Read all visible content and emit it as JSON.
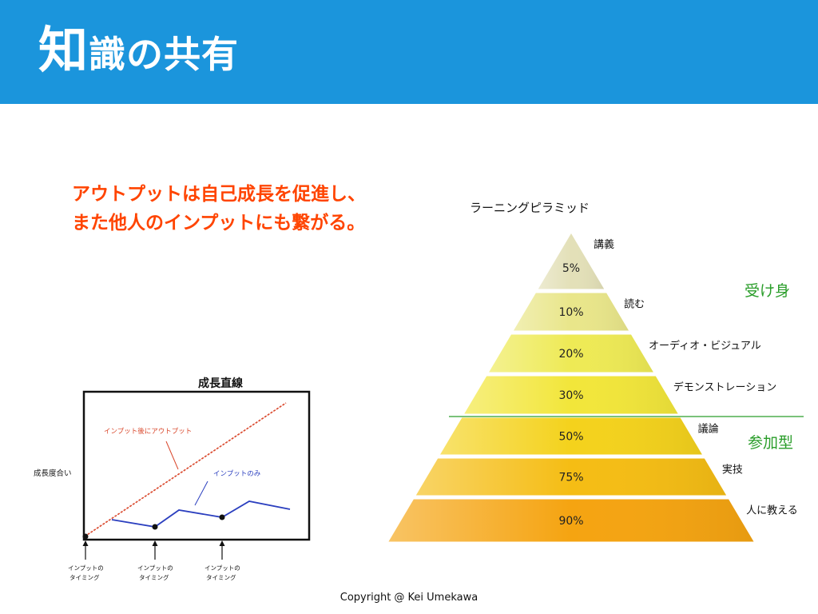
{
  "slide": {
    "title_first": "知",
    "title_rest": "識の共有",
    "highlight_line1": "アウトプットは自己成長を促進し、",
    "highlight_line2": "また他人のインプットにも繋がる。",
    "copyright": "Copyright @ Kei Umekawa"
  },
  "growth_chart": {
    "title": "成長直線",
    "ylabel": "成長度合い",
    "line_output_label": "インプット後にアウトプット",
    "line_input_label": "インプットのみ",
    "timing_labels": [
      [
        "インプットの",
        "タイミング"
      ],
      [
        "インプットの",
        "タイミング"
      ],
      [
        "インプットの",
        "タイミング"
      ]
    ],
    "colors": {
      "output_line": "#d9472b",
      "input_line": "#2b3fbf",
      "label_output": "#d9472b",
      "label_input": "#2b3fbf"
    }
  },
  "chart_data": {
    "type": "diagram",
    "title": "ラーニングピラミッド",
    "levels": [
      {
        "percent": "5%",
        "label": "講義"
      },
      {
        "percent": "10%",
        "label": "読む"
      },
      {
        "percent": "20%",
        "label": "オーディオ・ビジュアル"
      },
      {
        "percent": "30%",
        "label": "デモンストレーション"
      },
      {
        "percent": "50%",
        "label": "議論"
      },
      {
        "percent": "75%",
        "label": "実技"
      },
      {
        "percent": "90%",
        "label": "人に教える"
      }
    ],
    "groups": [
      {
        "label": "受け身",
        "color": "#2a9d2a"
      },
      {
        "label": "参加型",
        "color": "#2a9d2a"
      }
    ],
    "level_colors": [
      "#e3e0b8",
      "#e9e68a",
      "#eeea55",
      "#f2e63a",
      "#f4d21c",
      "#f5bd14",
      "#f5a411"
    ]
  }
}
